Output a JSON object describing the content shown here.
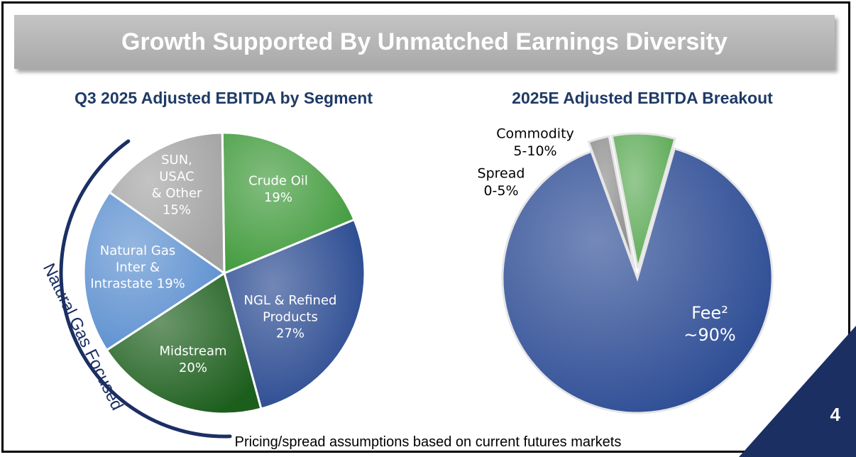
{
  "header": {
    "title": "Growth Supported By Unmatched Earnings Diversity"
  },
  "chart_data": [
    {
      "type": "pie",
      "title": "Q3 2025 Adjusted EBITDA by Segment",
      "slices": [
        {
          "label_lines": [
            "Crude Oil",
            "19%"
          ],
          "value": 19,
          "color": "#3f9a3a"
        },
        {
          "label_lines": [
            "NGL & Refined",
            "Products",
            "27%"
          ],
          "value": 27,
          "color": "#26478f"
        },
        {
          "label_lines": [
            "Midstream",
            "20%"
          ],
          "value": 20,
          "color": "#1c5e1c"
        },
        {
          "label_lines": [
            "Natural Gas",
            "Inter &",
            "Intrastate 19%"
          ],
          "value": 19,
          "color": "#5b8fcf"
        },
        {
          "label_lines": [
            "SUN,",
            "USAC",
            "& Other",
            "15%"
          ],
          "value": 15,
          "color": "#a3a3a3"
        }
      ],
      "annotation": "Natural Gas Focused"
    },
    {
      "type": "pie",
      "title": "2025E Adjusted EBITDA Breakout",
      "slices": [
        {
          "label_lines": [
            "Fee²",
            "~90%"
          ],
          "value": 90,
          "color": "#2a4a93"
        },
        {
          "label_lines": [
            "Spread",
            "0-5%"
          ],
          "value": 2.5,
          "color": "#8c8c8c"
        },
        {
          "label_lines": [
            "Commodity",
            "5-10%"
          ],
          "value": 7.5,
          "color": "#5caa55"
        }
      ]
    }
  ],
  "footer": {
    "note": "Pricing/spread assumptions based on current futures markets",
    "page_number": "4"
  }
}
